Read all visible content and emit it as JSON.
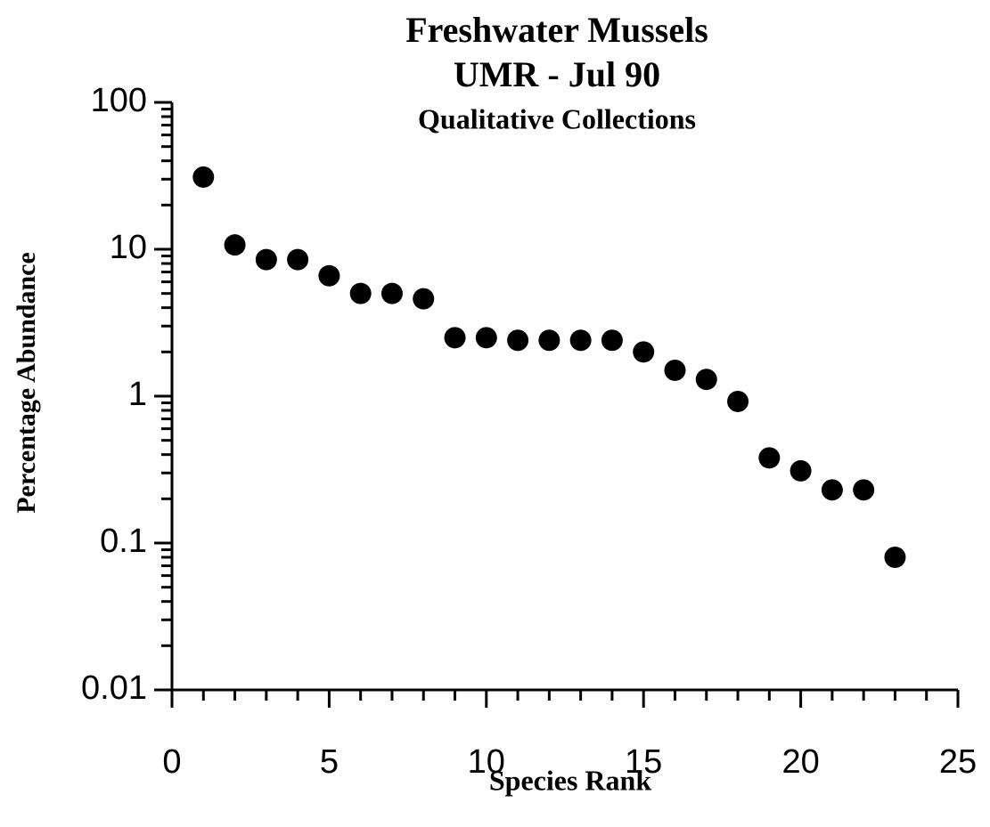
{
  "chart_data": {
    "type": "scatter",
    "title": "Freshwater  Mussels",
    "subtitle": "UMR  -  Jul  90",
    "annotation": "Qualitative  Collections",
    "x_label": "Species  Rank",
    "y_label": "Percentage Abundance",
    "x": [
      1,
      2,
      3,
      4,
      5,
      6,
      7,
      8,
      9,
      10,
      11,
      12,
      13,
      14,
      15,
      16,
      17,
      18,
      19,
      20,
      21,
      22,
      23
    ],
    "values": [
      31,
      10.7,
      8.5,
      8.5,
      6.6,
      5.0,
      5.0,
      4.6,
      2.5,
      2.5,
      2.4,
      2.4,
      2.4,
      2.4,
      2.0,
      1.5,
      1.3,
      0.92,
      0.38,
      0.31,
      0.23,
      0.23,
      0.08
    ],
    "color": "#000000",
    "xlim": [
      0,
      25
    ],
    "xticks": [
      0,
      5,
      10,
      15,
      20,
      25
    ],
    "ylim": [
      0.01,
      100
    ],
    "yticks": [
      0.01,
      0.1,
      1,
      10,
      100
    ],
    "ylog": true
  }
}
